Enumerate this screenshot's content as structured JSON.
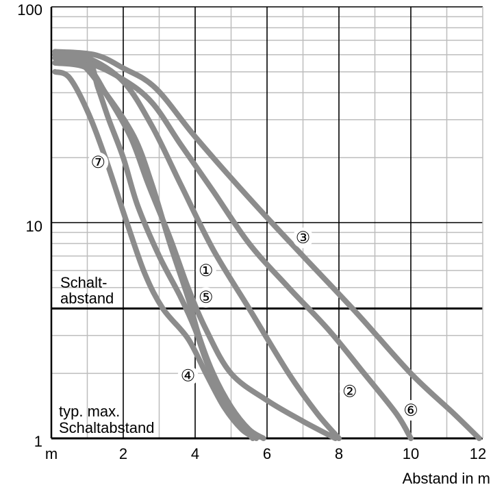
{
  "chart_data": {
    "type": "line",
    "x_scale": "linear",
    "y_scale": "log",
    "xlim": [
      0,
      12
    ],
    "ylim": [
      1,
      100
    ],
    "x_ticks": [
      "m",
      "2",
      "4",
      "6",
      "8",
      "10",
      "12"
    ],
    "x_tick_values": [
      0,
      2,
      4,
      6,
      8,
      10,
      12
    ],
    "y_ticks": [
      "1",
      "10",
      "100"
    ],
    "y_tick_values": [
      1,
      10,
      100
    ],
    "xlabel": "Abstand in m",
    "ylabel": "",
    "grid": true,
    "colors": {
      "curve": "#8c8c8c",
      "grid": "#bdbdbd",
      "major": "#000000"
    },
    "reference_lines": [
      {
        "label": "Schalt-\nabstand",
        "value": 4
      },
      {
        "label": "typ. max.\nSchaltabstand",
        "value": 1
      }
    ],
    "series": [
      {
        "name": "①",
        "points": [
          [
            0.1,
            60
          ],
          [
            1.0,
            58
          ],
          [
            2.0,
            45
          ],
          [
            2.8,
            28
          ],
          [
            3.6,
            15
          ],
          [
            4.5,
            7.5
          ],
          [
            5.5,
            4
          ],
          [
            6.6,
            2
          ],
          [
            7.4,
            1.3
          ],
          [
            8.0,
            1.0
          ]
        ]
      },
      {
        "name": "②",
        "points": [
          [
            0.1,
            55
          ],
          [
            1.0,
            52
          ],
          [
            1.5,
            40
          ],
          [
            2.2,
            25
          ],
          [
            2.7,
            15
          ],
          [
            3.3,
            8.5
          ],
          [
            3.8,
            5
          ],
          [
            4.3,
            3.2
          ],
          [
            5.0,
            2.0
          ],
          [
            6.0,
            1.5
          ],
          [
            7.0,
            1.2
          ],
          [
            7.9,
            1.0
          ]
        ]
      },
      {
        "name": "③",
        "points": [
          [
            0.1,
            62
          ],
          [
            1.2,
            60
          ],
          [
            2.0,
            52
          ],
          [
            2.9,
            42
          ],
          [
            4.0,
            25
          ],
          [
            5.5,
            13
          ],
          [
            7.0,
            7
          ],
          [
            8.5,
            3.8
          ],
          [
            10.0,
            2.0
          ],
          [
            11.2,
            1.3
          ],
          [
            11.9,
            1.0
          ]
        ]
      },
      {
        "name": "④",
        "points": [
          [
            0.1,
            50
          ],
          [
            0.5,
            47
          ],
          [
            1.0,
            33
          ],
          [
            1.5,
            20
          ],
          [
            2.1,
            10
          ],
          [
            2.6,
            5.8
          ],
          [
            3.1,
            4.0
          ],
          [
            3.8,
            2.9
          ],
          [
            4.3,
            2.0
          ],
          [
            4.8,
            1.4
          ],
          [
            5.3,
            1.1
          ],
          [
            5.7,
            1.0
          ]
        ]
      },
      {
        "name": "⑤",
        "points": [
          [
            0.1,
            58
          ],
          [
            0.8,
            55
          ],
          [
            1.5,
            40
          ],
          [
            2.3,
            25
          ],
          [
            2.8,
            15
          ],
          [
            3.3,
            8
          ],
          [
            3.8,
            4.5
          ],
          [
            4.1,
            3.0
          ],
          [
            4.5,
            2.0
          ],
          [
            5.0,
            1.4
          ],
          [
            5.5,
            1.1
          ],
          [
            5.9,
            1.0
          ]
        ]
      },
      {
        "name": "⑥",
        "points": [
          [
            0.1,
            55
          ],
          [
            1.0,
            55
          ],
          [
            2.0,
            46
          ],
          [
            2.8,
            36
          ],
          [
            3.6,
            23
          ],
          [
            4.5,
            14
          ],
          [
            5.5,
            8
          ],
          [
            6.6,
            5
          ],
          [
            7.7,
            3.2
          ],
          [
            8.7,
            2.0
          ],
          [
            9.6,
            1.3
          ],
          [
            10.0,
            1.0
          ]
        ]
      },
      {
        "name": "⑦",
        "points": [
          [
            0.1,
            60
          ],
          [
            1.0,
            57
          ],
          [
            1.3,
            42
          ],
          [
            1.6,
            30
          ],
          [
            2.0,
            20
          ],
          [
            2.4,
            12
          ],
          [
            3.0,
            7
          ],
          [
            3.6,
            4.5
          ],
          [
            4.0,
            3.2
          ],
          [
            4.3,
            2.3
          ],
          [
            4.7,
            1.6
          ],
          [
            5.2,
            1.2
          ],
          [
            5.6,
            1.0
          ]
        ]
      }
    ]
  }
}
